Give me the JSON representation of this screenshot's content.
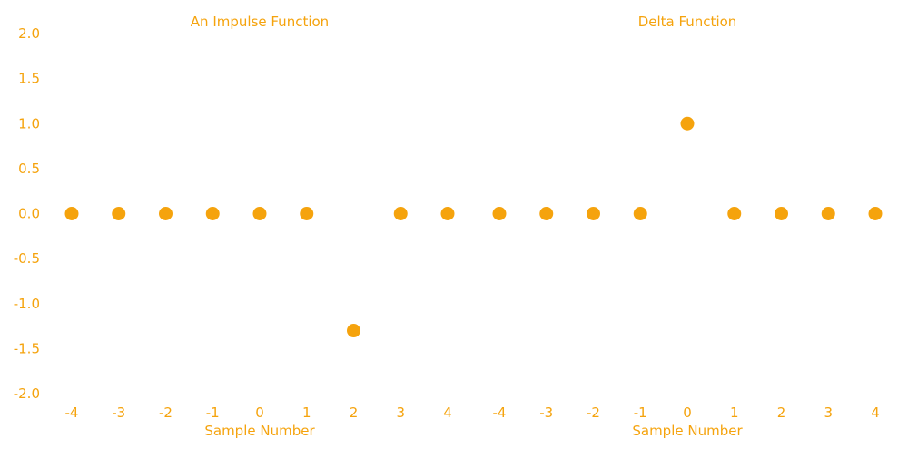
{
  "style": {
    "color": "#f5a30d",
    "background": "#ffffff"
  },
  "chart_data": [
    {
      "type": "scatter",
      "title": "An Impulse Function",
      "xlabel": "Sample Number",
      "ylabel": "",
      "x": [
        -4,
        -3,
        -2,
        -1,
        0,
        1,
        2,
        3,
        4
      ],
      "y": [
        0,
        0,
        0,
        0,
        0,
        0,
        -1.3,
        0,
        0
      ],
      "xticks": [
        "-4",
        "-3",
        "-2",
        "-1",
        "0",
        "1",
        "2",
        "3",
        "4"
      ],
      "yticks": [
        "2.0",
        "1.5",
        "1.0",
        "0.5",
        "0.0",
        "-0.5",
        "-1.0",
        "-1.5",
        "-2.0"
      ],
      "ylim": [
        -2,
        2
      ],
      "grid": false,
      "axis_lines": false
    },
    {
      "type": "scatter",
      "title": "Delta Function",
      "xlabel": "Sample Number",
      "ylabel": "",
      "x": [
        -4,
        -3,
        -2,
        -1,
        0,
        1,
        2,
        3,
        4
      ],
      "y": [
        0,
        0,
        0,
        0,
        1,
        0,
        0,
        0,
        0
      ],
      "xticks": [
        "-4",
        "-3",
        "-2",
        "-1",
        "0",
        "1",
        "2",
        "3",
        "4"
      ],
      "yticks": [],
      "ylim": [
        -2,
        2
      ],
      "grid": false,
      "axis_lines": false
    }
  ]
}
